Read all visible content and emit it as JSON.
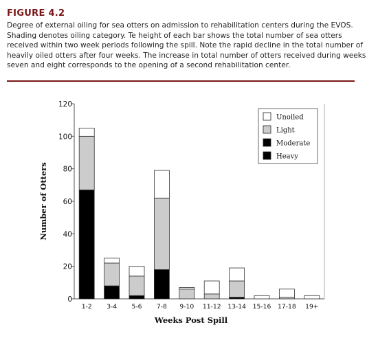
{
  "figure": {
    "title": "FIGURE 4.2",
    "caption": "Degree of external oiling for sea otters on admission to rehabilitation centers during the EVOS. Shading denotes oiling category. Te height of each bar shows the total number of sea otters received within two week periods following the spill. Note the rapid decline in the total number of heavily oiled otters after four weeks. The increase in total number of otters received during weeks seven and eight corresponds to the opening of a second rehabilitation center."
  },
  "chart_data": {
    "type": "bar",
    "stacked": true,
    "categories": [
      "1-2",
      "3-4",
      "5-6",
      "7-8",
      "9-10",
      "11-12",
      "13-14",
      "15-16",
      "17-18",
      "19+"
    ],
    "series": [
      {
        "name": "Heavy",
        "color": "#000000",
        "values": [
          67,
          8,
          2,
          18,
          0,
          0,
          1,
          0,
          0,
          0
        ]
      },
      {
        "name": "Moderate",
        "color": "#000000",
        "values": [
          0,
          0,
          0,
          0,
          0,
          0,
          0,
          0,
          0,
          0
        ]
      },
      {
        "name": "Light",
        "color": "#cccccc",
        "values": [
          33,
          14,
          12,
          44,
          6,
          3,
          10,
          0,
          1,
          0
        ]
      },
      {
        "name": "Unoiled",
        "color": "#ffffff",
        "values": [
          5,
          3,
          6,
          17,
          1,
          8,
          8,
          2,
          5,
          2
        ]
      }
    ],
    "legend_order": [
      "Unoiled",
      "Light",
      "Moderate",
      "Heavy"
    ],
    "legend_position": "top-right",
    "xlabel": "Weeks Post Spill",
    "ylabel": "Number of Otters",
    "ylim": [
      0,
      120
    ],
    "yticks": [
      0,
      20,
      40,
      60,
      80,
      100,
      120
    ],
    "grid": false
  },
  "colors": {
    "title": "#7a1515",
    "rule": "#7a1515"
  }
}
